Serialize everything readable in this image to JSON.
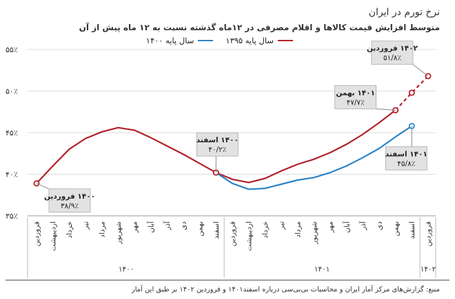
{
  "title": "نرخ تورم در ایران",
  "subtitle": "متوسط افزایش قیمت کالاها و اقلام مصرفی در ۱۲ماه گذشته نسبت به ۱۲ ماه پیش از آن",
  "source": "منبع: گزارش‌های مرکز آمار ایران و محاسبات بی‌بی‌سی درباره اسفند۱۴۰۱ و فروردین ۱۴۰۲ بر طبق این آمار",
  "colors": {
    "red": "#b22028",
    "blue": "#2b83c6",
    "grid": "#dcdcdc",
    "callout_bg": "#e2e2e2"
  },
  "chart_data": {
    "type": "line",
    "title": "نرخ تورم در ایران",
    "subtitle": "متوسط افزایش قیمت کالاها و اقلام مصرفی در ۱۲ماه گذشته نسبت به ۱۲ ماه پیش از آن",
    "categories": [
      "فروردین",
      "اردیبهشت",
      "خرداد",
      "تیر",
      "مرداد",
      "شهریور",
      "مهر",
      "آبان",
      "آذر",
      "دی",
      "بهمن",
      "اسفند",
      "فروردین",
      "اردیبهشت",
      "خرداد",
      "تیر",
      "مرداد",
      "شهریور",
      "مهر",
      "آبان",
      "آذر",
      "دی",
      "بهمن",
      "اسفند",
      "فروردین"
    ],
    "year_groups": [
      {
        "label": "۱۴۰۰",
        "start": 0,
        "end": 11
      },
      {
        "label": "۱۴۰۱",
        "start": 12,
        "end": 23
      },
      {
        "label": "۱۴۰۲",
        "start": 24,
        "end": 24
      }
    ],
    "series": [
      {
        "name": "سال پایه ۱۳۹۵",
        "color": "#b22028",
        "values": [
          38.9,
          41.0,
          43.0,
          44.3,
          45.1,
          45.6,
          45.3,
          44.4,
          43.4,
          42.4,
          41.3,
          40.2,
          39.4,
          39.0,
          39.5,
          40.4,
          41.2,
          41.8,
          42.6,
          43.6,
          44.8,
          46.2,
          47.7,
          49.8,
          51.8
        ],
        "dashed_from_index": 23
      },
      {
        "name": "سال پایه ۱۴۰۰",
        "color": "#2b83c6",
        "values": [
          null,
          null,
          null,
          null,
          null,
          null,
          null,
          null,
          null,
          null,
          null,
          40.2,
          38.9,
          38.2,
          38.3,
          38.8,
          39.3,
          39.6,
          40.2,
          41.0,
          42.0,
          43.1,
          44.5,
          45.8,
          null
        ]
      }
    ],
    "ylim": [
      35,
      55
    ],
    "yticks": [
      "۳۵٪",
      "۴۰٪",
      "۴۵٪",
      "۵۰٪",
      "۵۵٪"
    ],
    "grid": true,
    "legend_position": "top",
    "annotations": [
      {
        "series": 0,
        "index": 0,
        "lines": [
          "۱۴۰۰ فروردین",
          "۳۸/۹٪"
        ]
      },
      {
        "series": 0,
        "index": 11,
        "lines": [
          "۱۴۰۰ اسفند",
          "۴۰/۲٪"
        ]
      },
      {
        "series": 0,
        "index": 22,
        "lines": [
          "۱۴۰۱ بهمن",
          "۴۷/۷٪"
        ]
      },
      {
        "series": 0,
        "index": 24,
        "lines": [
          "۱۴۰۲ فروردین",
          "۵۱/۸٪"
        ]
      },
      {
        "series": 1,
        "index": 23,
        "lines": [
          "۱۴۰۱ اسفند",
          "۴۵/۸٪"
        ]
      }
    ]
  }
}
